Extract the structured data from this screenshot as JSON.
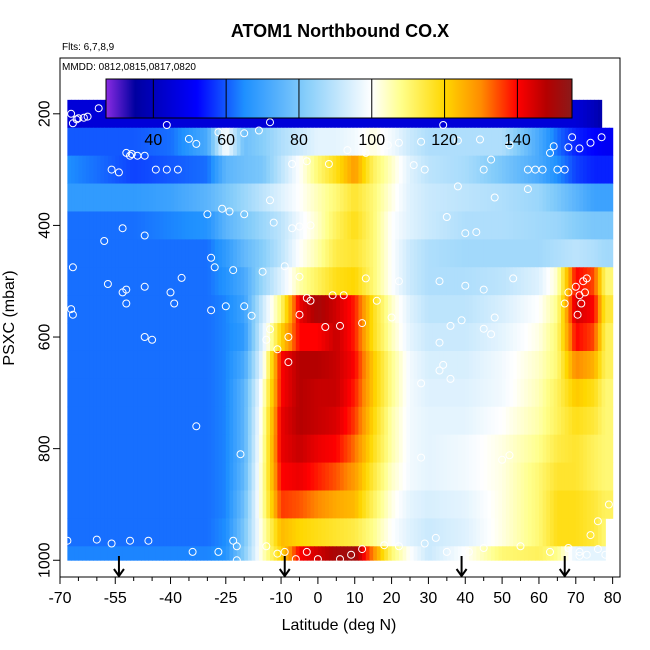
{
  "chart_data": {
    "type": "heatmap",
    "title": "ATOM1 Northbound CO.X",
    "info_lines": [
      "Flts: 6,7,8,9",
      "MMDD: 0812,0815,0817,0820"
    ],
    "xlabel": "Latitude (deg N)",
    "ylabel": "PSXC (mbar)",
    "xlim": [
      -70,
      82
    ],
    "ylim": [
      1030,
      100
    ],
    "x_ticks": [
      -70,
      -55,
      -40,
      -25,
      -10,
      0,
      10,
      20,
      30,
      40,
      50,
      60,
      70,
      80
    ],
    "x_tick_labels": [
      "-70",
      "-55",
      "-40",
      "-25",
      "-10",
      "0",
      "10",
      "20",
      "30",
      "40",
      "50",
      "60",
      "70",
      "80"
    ],
    "x_minor_ticks": [
      -65,
      -60,
      -50,
      -45,
      -35,
      -30,
      -20,
      -15,
      -5,
      5,
      15,
      25,
      35,
      45,
      55,
      65,
      75
    ],
    "y_ticks": [
      200,
      400,
      600,
      800,
      1000
    ],
    "y_tick_labels": [
      "200",
      "400",
      "600",
      "800",
      "1000"
    ],
    "colorbar": {
      "range": [
        27,
        155
      ],
      "ticks": [
        40,
        60,
        80,
        100,
        120,
        140
      ],
      "tick_labels": [
        "40",
        "60",
        "80",
        "100",
        "120",
        "140"
      ],
      "colors": [
        "#8a2be2",
        "#0000a0",
        "#0000ff",
        "#1e90ff",
        "#87cefa",
        "#ffffff",
        "#ffff8c",
        "#ffd700",
        "#ff8c00",
        "#ff0000",
        "#b40000",
        "#8b1a1a"
      ],
      "color_stops": [
        27,
        35,
        52,
        65,
        82,
        100,
        108,
        120,
        130,
        140,
        148,
        155
      ]
    },
    "pressure_levels": [
      200,
      250,
      300,
      350,
      400,
      450,
      500,
      550,
      600,
      650,
      700,
      750,
      800,
      850,
      900,
      950,
      1000
    ],
    "latitudes": [
      -68,
      -60,
      -50,
      -40,
      -30,
      -25,
      -20,
      -15,
      -10,
      -5,
      0,
      5,
      10,
      15,
      20,
      25,
      30,
      40,
      50,
      60,
      65,
      70,
      75,
      78
    ],
    "co_ppbv": [
      [
        45,
        45,
        45,
        45,
        45,
        45,
        45,
        45,
        45,
        45,
        45,
        45,
        45,
        45,
        45,
        45,
        45,
        45,
        45,
        45,
        45,
        45,
        40,
        35
      ],
      [
        60,
        60,
        60,
        62,
        72,
        100,
        78,
        82,
        88,
        92,
        96,
        96,
        98,
        102,
        98,
        92,
        88,
        88,
        88,
        72,
        62,
        55,
        52,
        50
      ],
      [
        65,
        62,
        58,
        60,
        62,
        75,
        78,
        80,
        90,
        100,
        110,
        118,
        128,
        112,
        104,
        95,
        90,
        87,
        80,
        72,
        65,
        58,
        55,
        55
      ],
      [
        68,
        68,
        68,
        70,
        75,
        80,
        85,
        90,
        95,
        100,
        105,
        110,
        116,
        110,
        102,
        95,
        92,
        90,
        88,
        85,
        80,
        75,
        70,
        70
      ],
      [
        62,
        62,
        62,
        64,
        66,
        75,
        80,
        85,
        90,
        98,
        104,
        112,
        118,
        110,
        100,
        95,
        92,
        88,
        88,
        86,
        85,
        82,
        80,
        80
      ],
      [
        62,
        62,
        62,
        62,
        62,
        68,
        76,
        82,
        90,
        100,
        106,
        114,
        116,
        110,
        100,
        92,
        88,
        86,
        86,
        86,
        88,
        90,
        88,
        86
      ],
      [
        62,
        62,
        62,
        62,
        62,
        66,
        72,
        85,
        95,
        106,
        112,
        118,
        120,
        110,
        100,
        92,
        88,
        88,
        90,
        95,
        104,
        140,
        135,
        110
      ],
      [
        62,
        62,
        62,
        62,
        62,
        64,
        70,
        92,
        110,
        142,
        150,
        145,
        138,
        118,
        104,
        95,
        90,
        90,
        94,
        100,
        108,
        145,
        140,
        115
      ],
      [
        62,
        62,
        62,
        62,
        62,
        64,
        68,
        95,
        120,
        140,
        140,
        146,
        138,
        118,
        105,
        96,
        92,
        92,
        96,
        102,
        110,
        140,
        135,
        112
      ],
      [
        62,
        62,
        62,
        62,
        62,
        64,
        72,
        98,
        140,
        148,
        148,
        146,
        140,
        122,
        108,
        98,
        94,
        94,
        98,
        104,
        110,
        130,
        125,
        112
      ],
      [
        62,
        62,
        62,
        62,
        62,
        64,
        75,
        102,
        140,
        148,
        146,
        146,
        138,
        122,
        108,
        98,
        95,
        95,
        98,
        105,
        112,
        122,
        118,
        110
      ],
      [
        62,
        62,
        62,
        62,
        62,
        64,
        75,
        104,
        142,
        148,
        146,
        144,
        136,
        120,
        106,
        98,
        96,
        96,
        100,
        106,
        112,
        118,
        115,
        110
      ],
      [
        62,
        62,
        62,
        62,
        62,
        64,
        75,
        105,
        142,
        146,
        142,
        140,
        132,
        118,
        106,
        98,
        96,
        98,
        102,
        108,
        114,
        116,
        112,
        110
      ],
      [
        62,
        62,
        62,
        62,
        62,
        64,
        76,
        106,
        140,
        142,
        138,
        134,
        128,
        115,
        104,
        98,
        96,
        98,
        102,
        110,
        116,
        116,
        112,
        110
      ],
      [
        62,
        62,
        62,
        62,
        62,
        64,
        78,
        106,
        136,
        134,
        130,
        126,
        124,
        112,
        102,
        96,
        94,
        96,
        102,
        110,
        118,
        118,
        115,
        112
      ],
      [
        62,
        62,
        62,
        62,
        62,
        65,
        80,
        104,
        124,
        120,
        118,
        116,
        114,
        108,
        100,
        95,
        92,
        95,
        102,
        110,
        118,
        118,
        115,
        110
      ],
      [
        64,
        64,
        64,
        64,
        64,
        66,
        82,
        104,
        120,
        140,
        145,
        150,
        152,
        130,
        110,
        100,
        92,
        100,
        110,
        112,
        108,
        96,
        96,
        96
      ]
    ],
    "observations": [
      [
        -66.5,
        217
      ],
      [
        -67,
        200
      ],
      [
        -65.5,
        210
      ],
      [
        -65,
        208
      ],
      [
        -63.5,
        207
      ],
      [
        -62.5,
        205
      ],
      [
        -59.5,
        190
      ],
      [
        -56,
        300
      ],
      [
        -54,
        305
      ],
      [
        -52,
        270
      ],
      [
        -51,
        275
      ],
      [
        -50.5,
        272
      ],
      [
        -49,
        275
      ],
      [
        -47,
        275
      ],
      [
        -44,
        300
      ],
      [
        -41,
        300
      ],
      [
        -38,
        300
      ],
      [
        -13,
        215
      ],
      [
        -27,
        233
      ],
      [
        -35,
        245
      ],
      [
        -41,
        220
      ],
      [
        -33,
        254
      ],
      [
        -16,
        230
      ],
      [
        -20,
        235
      ],
      [
        -7,
        290
      ],
      [
        -3,
        285
      ],
      [
        3,
        290
      ],
      [
        8,
        265
      ],
      [
        13,
        270
      ],
      [
        19,
        256
      ],
      [
        22,
        252
      ],
      [
        28,
        250
      ],
      [
        34,
        220
      ],
      [
        38,
        248
      ],
      [
        44,
        246
      ],
      [
        45,
        300
      ],
      [
        47,
        282
      ],
      [
        52,
        256
      ],
      [
        57,
        300
      ],
      [
        59,
        300
      ],
      [
        61,
        300
      ],
      [
        63,
        270
      ],
      [
        64,
        258
      ],
      [
        65,
        300
      ],
      [
        67,
        300
      ],
      [
        68,
        260
      ],
      [
        69,
        242
      ],
      [
        71,
        262
      ],
      [
        74,
        252
      ],
      [
        77,
        242
      ],
      [
        50,
        195
      ],
      [
        48,
        350
      ],
      [
        57,
        335
      ],
      [
        38,
        330
      ],
      [
        29,
        300
      ],
      [
        26,
        292
      ],
      [
        -30,
        380
      ],
      [
        -26,
        370
      ],
      [
        -24,
        375
      ],
      [
        -20,
        380
      ],
      [
        -13,
        355
      ],
      [
        -12,
        395
      ],
      [
        -7,
        405
      ],
      [
        -5,
        402
      ],
      [
        -2,
        400
      ],
      [
        35,
        385
      ],
      [
        40,
        414
      ],
      [
        43,
        412
      ],
      [
        -58,
        428
      ],
      [
        -53,
        405
      ],
      [
        -47,
        418
      ],
      [
        -66.5,
        475
      ],
      [
        -57,
        505
      ],
      [
        -53,
        520
      ],
      [
        -52,
        515
      ],
      [
        -47,
        510
      ],
      [
        -40,
        520
      ],
      [
        -37,
        494
      ],
      [
        -29,
        458
      ],
      [
        -28,
        475
      ],
      [
        -23,
        480
      ],
      [
        -15,
        483
      ],
      [
        -9,
        473
      ],
      [
        -5,
        492
      ],
      [
        -2,
        535
      ],
      [
        4,
        525
      ],
      [
        7,
        525
      ],
      [
        13,
        495
      ],
      [
        16,
        535
      ],
      [
        22,
        500
      ],
      [
        33,
        500
      ],
      [
        40,
        508
      ],
      [
        45,
        515
      ],
      [
        53,
        495
      ],
      [
        48,
        565
      ],
      [
        39,
        570
      ],
      [
        45,
        585
      ],
      [
        47,
        595
      ],
      [
        36,
        580
      ],
      [
        33,
        610
      ],
      [
        20,
        565
      ],
      [
        12,
        575
      ],
      [
        6,
        580
      ],
      [
        2,
        582
      ],
      [
        -3,
        530
      ],
      [
        -5,
        560
      ],
      [
        -8,
        600
      ],
      [
        -13,
        586
      ],
      [
        -18,
        562
      ],
      [
        -20,
        545
      ],
      [
        -25,
        545
      ],
      [
        -29,
        552
      ],
      [
        -39,
        540
      ],
      [
        -45,
        605
      ],
      [
        -47,
        600
      ],
      [
        -52,
        540
      ],
      [
        -67,
        550
      ],
      [
        -66.5,
        560
      ],
      [
        -8,
        645
      ],
      [
        -11,
        622
      ],
      [
        -14,
        605
      ],
      [
        34,
        650
      ],
      [
        36,
        675
      ],
      [
        33,
        660
      ],
      [
        70,
        510
      ],
      [
        71,
        525
      ],
      [
        71.5,
        540
      ],
      [
        72,
        500
      ],
      [
        73,
        495
      ],
      [
        72.5,
        520
      ],
      [
        70.5,
        560
      ],
      [
        28,
        683
      ],
      [
        67,
        540
      ],
      [
        68,
        520
      ],
      [
        28,
        816
      ],
      [
        50,
        820
      ],
      [
        52,
        812
      ],
      [
        -33,
        760
      ],
      [
        -21,
        810
      ],
      [
        79,
        900
      ],
      [
        76,
        930
      ],
      [
        74,
        955
      ],
      [
        68,
        978
      ],
      [
        76,
        980
      ],
      [
        78,
        990
      ],
      [
        71,
        985
      ],
      [
        -68,
        965
      ],
      [
        -60,
        963
      ],
      [
        -56,
        970
      ],
      [
        -51,
        965
      ],
      [
        -46,
        965
      ],
      [
        -34,
        985
      ],
      [
        -27,
        985
      ],
      [
        -23,
        965
      ],
      [
        -22,
        975
      ],
      [
        -22,
        1000
      ],
      [
        -14,
        975
      ],
      [
        -9,
        985
      ],
      [
        -6,
        998
      ],
      [
        -3,
        985
      ],
      [
        0,
        998
      ],
      [
        6,
        998
      ],
      [
        9,
        990
      ],
      [
        18,
        973
      ],
      [
        22,
        975
      ],
      [
        29,
        970
      ],
      [
        32,
        960
      ],
      [
        35,
        985
      ],
      [
        41,
        985
      ],
      [
        45,
        978
      ],
      [
        55,
        975
      ],
      [
        63,
        985
      ],
      [
        71,
        992
      ],
      [
        73,
        990
      ],
      [
        12,
        980
      ],
      [
        -11,
        988
      ]
    ],
    "flight_markers_lat": [
      -54,
      -9,
      39,
      67
    ]
  }
}
